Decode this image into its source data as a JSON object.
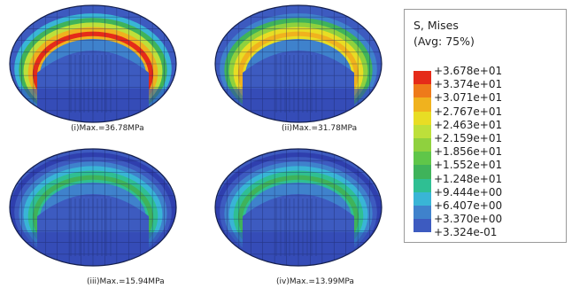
{
  "panels": [
    {
      "caption": "(i)Max.=36.78MPa",
      "max_value": 36.78
    },
    {
      "caption": "(ii)Max.=31.78MPa",
      "max_value": 31.78
    },
    {
      "caption": "(iii)Max.=15.94MPa",
      "max_value": 15.94
    },
    {
      "caption": "(iv)Max.=13.99MPa",
      "max_value": 13.99
    }
  ],
  "legend": {
    "title_line1": "S, Mises",
    "title_line2": "(Avg: 75%)",
    "values": [
      "+3.678e+01",
      "+3.374e+01",
      "+3.071e+01",
      "+2.767e+01",
      "+2.463e+01",
      "+2.159e+01",
      "+1.856e+01",
      "+1.552e+01",
      "+1.248e+01",
      "+9.444e+00",
      "+6.407e+00",
      "+3.370e+00",
      "+3.324e-01"
    ],
    "colors": [
      "#e52b19",
      "#ee7a1a",
      "#f0b21e",
      "#e8dd24",
      "#bde03a",
      "#8fd13e",
      "#5fc649",
      "#3fb35a",
      "#2fbf93",
      "#39b5d6",
      "#3f82cc",
      "#3d5bc0",
      "#2f3fae"
    ]
  }
}
